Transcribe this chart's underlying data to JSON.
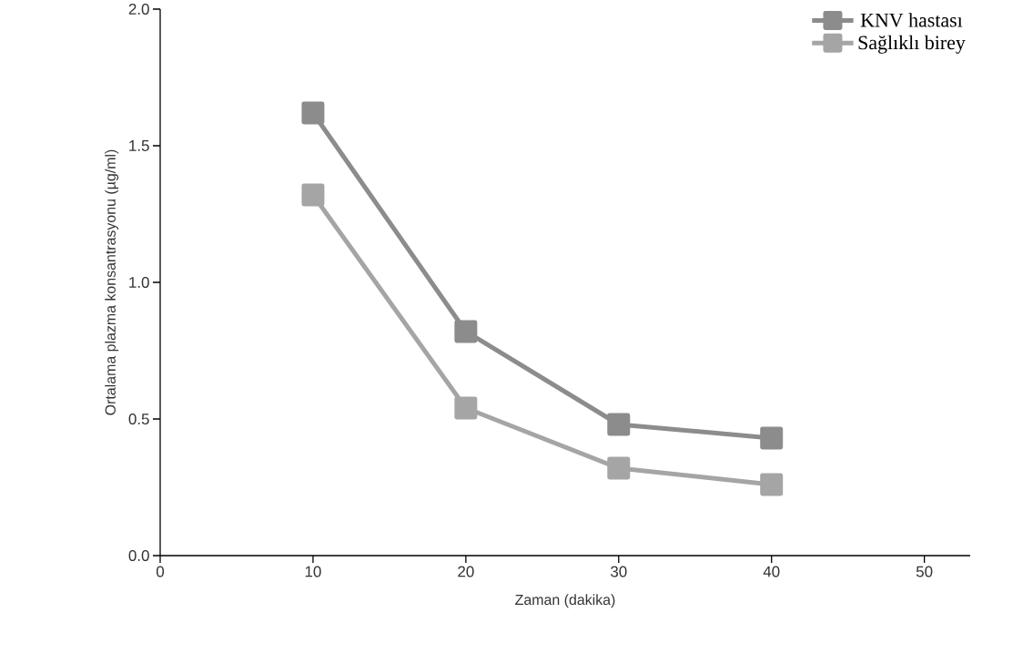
{
  "chart_data": {
    "type": "line",
    "xlabel": "Zaman (dakika)",
    "ylabel": "Ortalama plazma konsantrasyonu (µg/ml)",
    "x": [
      10,
      20,
      30,
      40
    ],
    "series": [
      {
        "name": "KNV hastası",
        "color": "#8c8c8c",
        "values": [
          1.62,
          0.82,
          0.48,
          0.43
        ]
      },
      {
        "name": "Sağlıklı birey",
        "color": "#a5a5a5",
        "values": [
          1.32,
          0.54,
          0.32,
          0.26
        ]
      }
    ],
    "xlim": [
      0,
      53
    ],
    "ylim": [
      0,
      2
    ],
    "xticks": [
      0,
      10,
      20,
      30,
      40,
      50
    ],
    "yticks": [
      {
        "value": 0,
        "label": "0.0"
      },
      {
        "value": 0.5,
        "label": "0.5"
      },
      {
        "value": 1,
        "label": "1.0"
      },
      {
        "value": 1.5,
        "label": "1.5"
      },
      {
        "value": 2,
        "label": "2.0"
      }
    ],
    "legend": "top right",
    "marker": "square",
    "line_style": "solid",
    "grid": false
  }
}
